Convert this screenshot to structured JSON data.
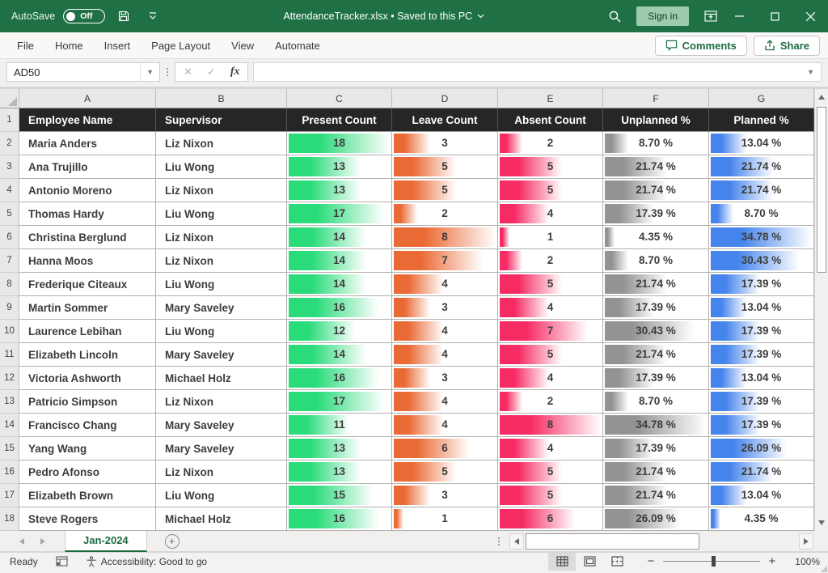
{
  "title_bar": {
    "autosave_label": "AutoSave",
    "autosave_state": "Off",
    "title_text": "AttendanceTracker.xlsx • Saved to this PC",
    "sign_in_label": "Sign in"
  },
  "ribbon": {
    "tabs": [
      "File",
      "Home",
      "Insert",
      "Page Layout",
      "View",
      "Automate"
    ],
    "comments_label": "Comments",
    "share_label": "Share"
  },
  "formula_bar": {
    "name_box_value": "AD50",
    "fx_label": "fx",
    "formula_value": ""
  },
  "grid": {
    "column_letters": [
      "A",
      "B",
      "C",
      "D",
      "E",
      "F",
      "G"
    ],
    "headers": [
      "Employee Name",
      "Supervisor",
      "Present Count",
      "Leave Count",
      "Absent Count",
      "Unplanned %",
      "Planned %"
    ],
    "bar_colors": {
      "present": "#2adb7a",
      "leave": "#ea6a35",
      "absent": "#f62b63",
      "unplanned": "#939393",
      "planned": "#4584ec"
    },
    "bar_max": {
      "present": 18,
      "leave": 8,
      "absent": 8,
      "unplanned": 34.78,
      "planned": 34.78
    },
    "rows": [
      {
        "name": "Maria Anders",
        "supervisor": "Liz Nixon",
        "present": 18,
        "leave": 3,
        "absent": 2,
        "unplanned": 8.7,
        "planned": 13.04
      },
      {
        "name": "Ana Trujillo",
        "supervisor": "Liu Wong",
        "present": 13,
        "leave": 5,
        "absent": 5,
        "unplanned": 21.74,
        "planned": 21.74
      },
      {
        "name": "Antonio Moreno",
        "supervisor": "Liz Nixon",
        "present": 13,
        "leave": 5,
        "absent": 5,
        "unplanned": 21.74,
        "planned": 21.74
      },
      {
        "name": "Thomas Hardy",
        "supervisor": "Liu Wong",
        "present": 17,
        "leave": 2,
        "absent": 4,
        "unplanned": 17.39,
        "planned": 8.7
      },
      {
        "name": "Christina Berglund",
        "supervisor": "Liz Nixon",
        "present": 14,
        "leave": 8,
        "absent": 1,
        "unplanned": 4.35,
        "planned": 34.78
      },
      {
        "name": "Hanna Moos",
        "supervisor": "Liz Nixon",
        "present": 14,
        "leave": 7,
        "absent": 2,
        "unplanned": 8.7,
        "planned": 30.43
      },
      {
        "name": "Frederique Citeaux",
        "supervisor": "Liu Wong",
        "present": 14,
        "leave": 4,
        "absent": 5,
        "unplanned": 21.74,
        "planned": 17.39
      },
      {
        "name": "Martin Sommer",
        "supervisor": "Mary Saveley",
        "present": 16,
        "leave": 3,
        "absent": 4,
        "unplanned": 17.39,
        "planned": 13.04
      },
      {
        "name": "Laurence Lebihan",
        "supervisor": "Liu Wong",
        "present": 12,
        "leave": 4,
        "absent": 7,
        "unplanned": 30.43,
        "planned": 17.39
      },
      {
        "name": "Elizabeth Lincoln",
        "supervisor": "Mary Saveley",
        "present": 14,
        "leave": 4,
        "absent": 5,
        "unplanned": 21.74,
        "planned": 17.39
      },
      {
        "name": "Victoria Ashworth",
        "supervisor": "Michael Holz",
        "present": 16,
        "leave": 3,
        "absent": 4,
        "unplanned": 17.39,
        "planned": 13.04
      },
      {
        "name": "Patricio Simpson",
        "supervisor": "Liz Nixon",
        "present": 17,
        "leave": 4,
        "absent": 2,
        "unplanned": 8.7,
        "planned": 17.39
      },
      {
        "name": "Francisco Chang",
        "supervisor": "Mary Saveley",
        "present": 11,
        "leave": 4,
        "absent": 8,
        "unplanned": 34.78,
        "planned": 17.39
      },
      {
        "name": "Yang Wang",
        "supervisor": "Mary Saveley",
        "present": 13,
        "leave": 6,
        "absent": 4,
        "unplanned": 17.39,
        "planned": 26.09
      },
      {
        "name": "Pedro Afonso",
        "supervisor": "Liz Nixon",
        "present": 13,
        "leave": 5,
        "absent": 5,
        "unplanned": 21.74,
        "planned": 21.74
      },
      {
        "name": "Elizabeth Brown",
        "supervisor": "Liu Wong",
        "present": 15,
        "leave": 3,
        "absent": 5,
        "unplanned": 21.74,
        "planned": 13.04
      },
      {
        "name": "Steve Rogers",
        "supervisor": "Michael Holz",
        "present": 16,
        "leave": 1,
        "absent": 6,
        "unplanned": 26.09,
        "planned": 4.35
      }
    ]
  },
  "sheet_bar": {
    "active_sheet": "Jan-2024"
  },
  "status_bar": {
    "mode": "Ready",
    "accessibility": "Accessibility: Good to go",
    "zoom_level": "100%"
  }
}
